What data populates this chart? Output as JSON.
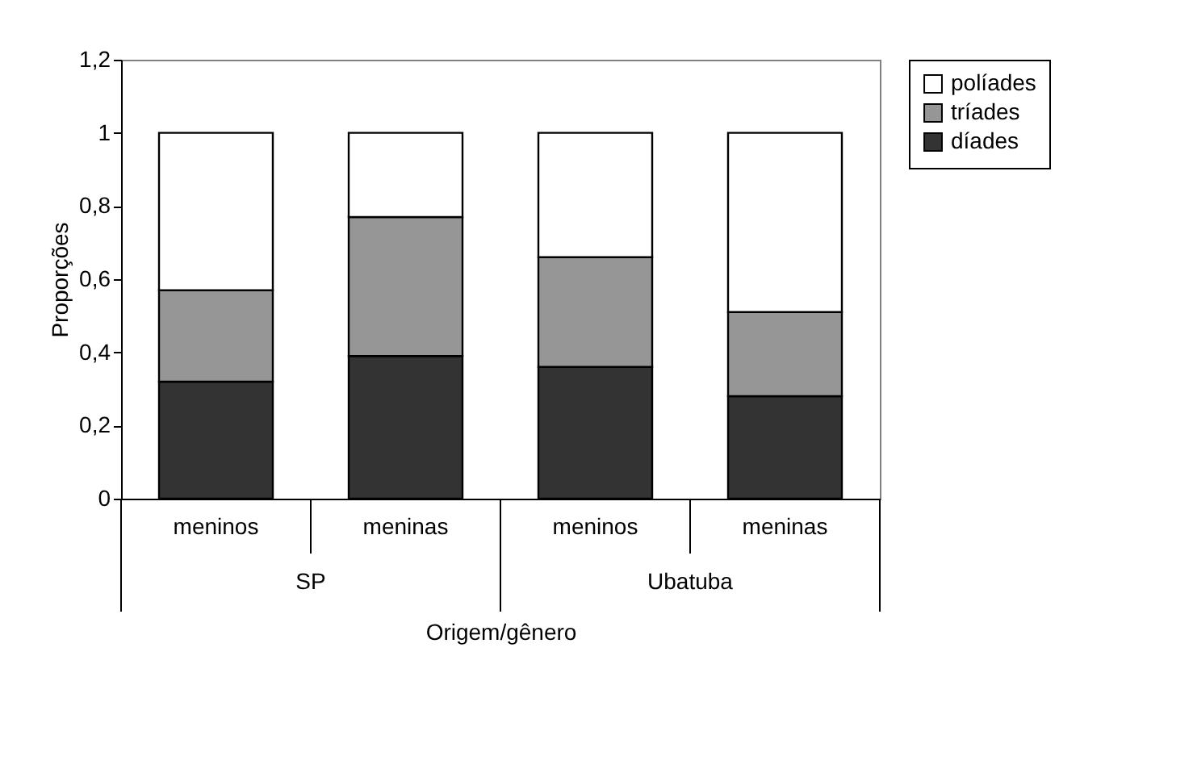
{
  "chart_data": {
    "type": "bar",
    "stacked": true,
    "xlabel": "Origem/gênero",
    "ylabel": "Proporções",
    "categories": [
      "meninos",
      "meninas",
      "meninos",
      "meninas"
    ],
    "annotations": [
      "SP",
      "Ubatuba"
    ],
    "series": [
      {
        "name": "díades",
        "color": "#333333",
        "values": [
          0.32,
          0.39,
          0.36,
          0.28
        ]
      },
      {
        "name": "tríades",
        "color": "#969696",
        "values": [
          0.25,
          0.38,
          0.3,
          0.23
        ]
      },
      {
        "name": "políades",
        "color": "#ffffff",
        "values": [
          0.43,
          0.23,
          0.34,
          0.49
        ]
      }
    ],
    "ylim": [
      0,
      1.2
    ],
    "yticks": [
      0,
      {
        "value": 0.2,
        "label": "0,2"
      },
      {
        "value": 0.4,
        "label": "0,4"
      },
      {
        "value": 0.6,
        "label": "0,6"
      },
      {
        "value": 0.8,
        "label": "0,8"
      },
      1,
      {
        "value": 1.2,
        "label": "1,2"
      }
    ],
    "grid": false,
    "legend": "right"
  }
}
